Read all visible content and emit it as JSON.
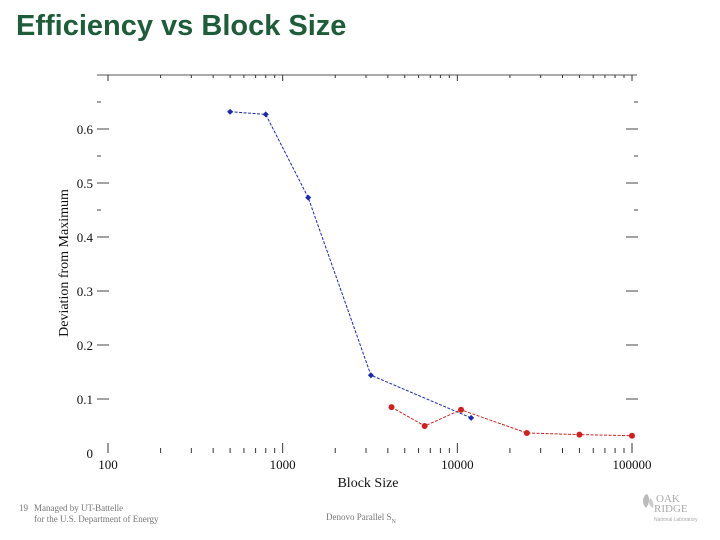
{
  "slide": {
    "title": "Efficiency vs Block Size"
  },
  "footer": {
    "slide_number": "19",
    "org_line1": "Managed by UT-Battelle",
    "org_line2": "for the U.S. Department of Energy",
    "center_text": "Denovo Parallel S",
    "center_sub": "N"
  },
  "logo": {
    "text_line1": "OAK",
    "text_line2": "RIDGE",
    "text_line3": "National Laboratory"
  },
  "colors": {
    "title": "#1f5c3a",
    "series1": "#1a2aa8",
    "series2": "#cc2222"
  },
  "chart_data": {
    "type": "line",
    "title": "",
    "xlabel": "Block Size",
    "ylabel": "Deviation from Maximum",
    "x_scale": "log",
    "xlim": [
      100,
      100000
    ],
    "ylim": [
      0,
      0.7
    ],
    "x_tick_labels": [
      "100",
      "1000",
      "10000",
      "100000"
    ],
    "x_ticks": [
      100,
      1000,
      10000,
      100000
    ],
    "y_tick_labels": [
      "0",
      "0.1",
      "0.2",
      "0.3",
      "0.4",
      "0.5",
      "0.6"
    ],
    "y_ticks": [
      0,
      0.1,
      0.2,
      0.3,
      0.4,
      0.5,
      0.6
    ],
    "grid": false,
    "series": [
      {
        "color": "#1a2aa8",
        "marker": "diamond",
        "points": [
          [
            500,
            0.632
          ],
          [
            800,
            0.627
          ],
          [
            1400,
            0.473
          ],
          [
            3200,
            0.144
          ],
          [
            12000,
            0.065
          ]
        ]
      },
      {
        "color": "#cc2222",
        "marker": "circle",
        "points": [
          [
            4200,
            0.085
          ],
          [
            6500,
            0.05
          ],
          [
            10500,
            0.08
          ],
          [
            25000,
            0.037
          ],
          [
            50000,
            0.034
          ],
          [
            100000,
            0.032
          ]
        ]
      }
    ]
  }
}
